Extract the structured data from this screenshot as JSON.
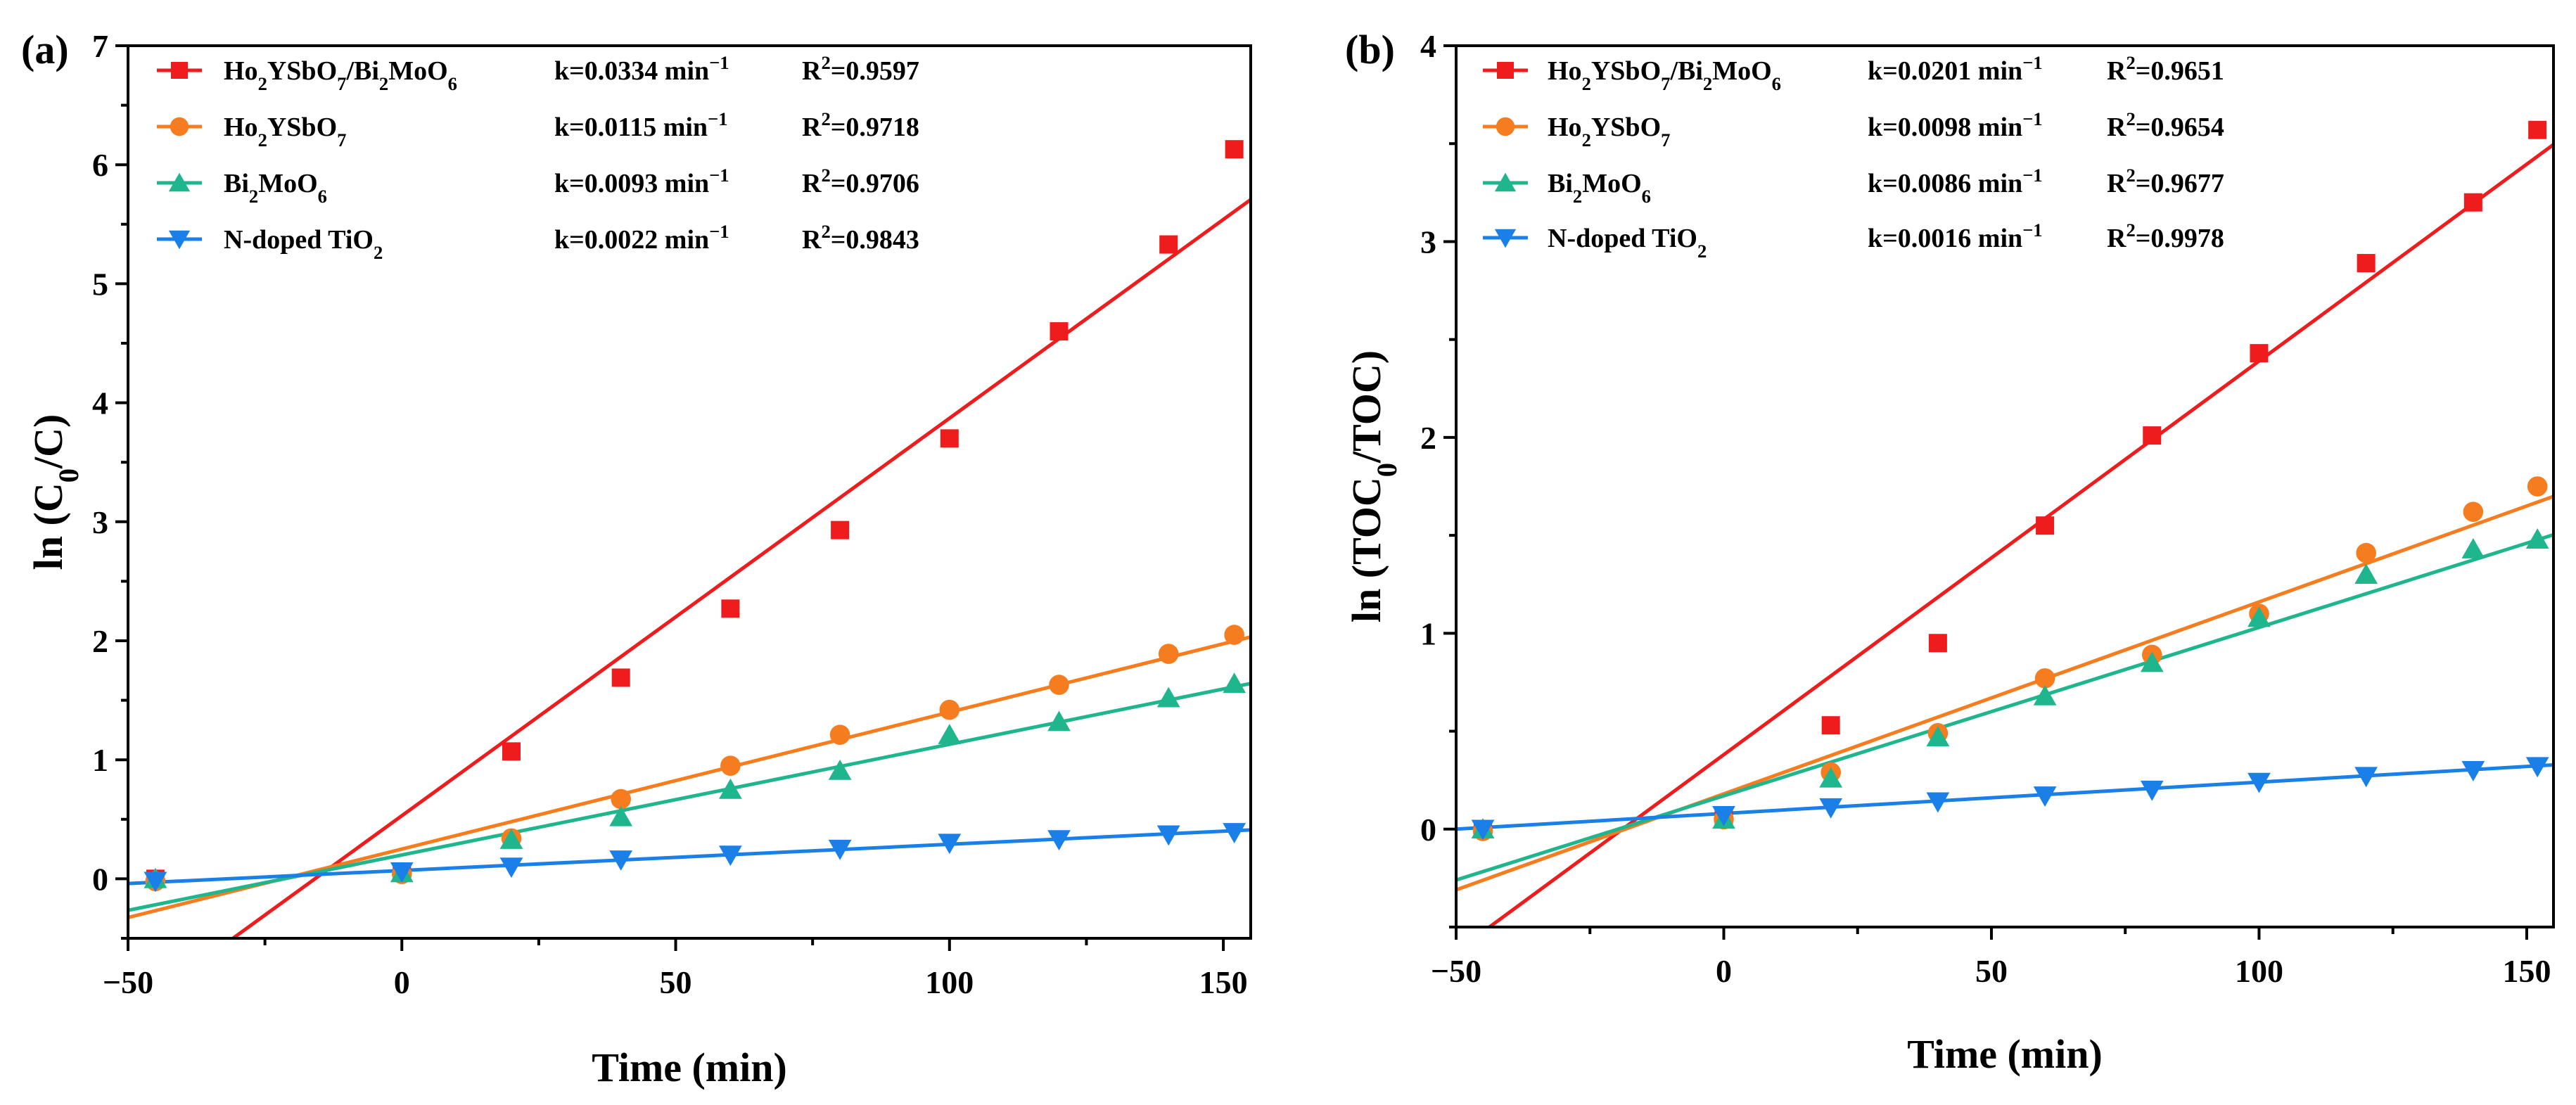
{
  "figure": {
    "panels": [
      "(a)",
      "(b)"
    ]
  },
  "chart_data": [
    {
      "type": "scatter",
      "panel_label": "(a)",
      "xlabel": "Time (min)",
      "ylabel": "ln (C0/C)",
      "ylabel_parts": {
        "pre": "ln (C",
        "sub": "0",
        "post": "/C)"
      },
      "xlim": [
        -50,
        155
      ],
      "ylim": [
        -0.5,
        7
      ],
      "xticks": [
        -50,
        0,
        50,
        100,
        150
      ],
      "yticks": [
        0,
        1,
        2,
        3,
        4,
        5,
        6,
        7
      ],
      "x": [
        -45,
        0,
        20,
        40,
        60,
        80,
        100,
        120,
        140,
        152
      ],
      "series": [
        {
          "name": "Ho2YSbO7/Bi2MoO6",
          "label_parts": [
            [
              "Ho",
              "n"
            ],
            [
              "2",
              "sub"
            ],
            [
              "YSbO",
              "n"
            ],
            [
              "7",
              "sub"
            ],
            [
              "/Bi",
              "n"
            ],
            [
              "2",
              "sub"
            ],
            [
              "MoO",
              "n"
            ],
            [
              "6",
              "sub"
            ]
          ],
          "k_label": "k=0.0334 min",
          "k_sup": "−1",
          "r2_label": "R",
          "r2_sup": "2",
          "r2_value": "=0.9597",
          "marker": "square",
          "color": "#ee1c1c",
          "values": [
            0.0,
            0.05,
            1.07,
            1.69,
            2.27,
            2.93,
            3.7,
            4.6,
            5.33,
            6.13
          ],
          "fit": {
            "slope": 0.0334,
            "intercept": 0.53
          }
        },
        {
          "name": "Ho2YSbO7",
          "label_parts": [
            [
              "Ho",
              "n"
            ],
            [
              "2",
              "sub"
            ],
            [
              "YSbO",
              "n"
            ],
            [
              "7",
              "sub"
            ]
          ],
          "k_label": "k=0.0115 min",
          "k_sup": "−1",
          "r2_label": "R",
          "r2_sup": "2",
          "r2_value": "=0.9718",
          "marker": "circle",
          "color": "#f57d1f",
          "values": [
            -0.02,
            0.04,
            0.34,
            0.67,
            0.95,
            1.21,
            1.42,
            1.63,
            1.89,
            2.05
          ],
          "fit": {
            "slope": 0.0115,
            "intercept": 0.25
          }
        },
        {
          "name": "Bi2MoO6",
          "label_parts": [
            [
              "Bi",
              "n"
            ],
            [
              "2",
              "sub"
            ],
            [
              "MoO",
              "n"
            ],
            [
              "6",
              "sub"
            ]
          ],
          "k_label": "k=0.0093 min",
          "k_sup": "−1",
          "r2_label": "R",
          "r2_sup": "2",
          "r2_value": "=0.9706",
          "marker": "triangle-up",
          "color": "#1fb58d",
          "values": [
            0.0,
            0.05,
            0.33,
            0.52,
            0.75,
            0.91,
            1.21,
            1.32,
            1.52,
            1.64
          ],
          "fit": {
            "slope": 0.0093,
            "intercept": 0.2
          }
        },
        {
          "name": "N-doped TiO2",
          "label_parts": [
            [
              "N-doped TiO",
              "n"
            ],
            [
              "2",
              "sub"
            ]
          ],
          "k_label": "k=0.0022 min",
          "k_sup": "−1",
          "r2_label": "R",
          "r2_sup": "2",
          "r2_value": "=0.9843",
          "marker": "triangle-down",
          "color": "#1a80e8",
          "values": [
            -0.02,
            0.06,
            0.1,
            0.16,
            0.2,
            0.25,
            0.3,
            0.33,
            0.37,
            0.39
          ],
          "fit": {
            "slope": 0.0022,
            "intercept": 0.07
          }
        }
      ]
    },
    {
      "type": "scatter",
      "panel_label": "(b)",
      "xlabel": "Time (min)",
      "ylabel": "ln (TOC0/TOC)",
      "ylabel_parts": {
        "pre": "ln (TOC",
        "sub": "0",
        "post": "/TOC)"
      },
      "xlim": [
        -50,
        155
      ],
      "ylim": [
        -0.5,
        4
      ],
      "xticks": [
        -50,
        0,
        50,
        100,
        150
      ],
      "yticks": [
        0,
        1,
        2,
        3,
        4
      ],
      "x": [
        -45,
        0,
        20,
        40,
        60,
        80,
        100,
        120,
        140,
        152
      ],
      "series": [
        {
          "name": "Ho2YSbO7/Bi2MoO6",
          "label_parts": [
            [
              "Ho",
              "n"
            ],
            [
              "2",
              "sub"
            ],
            [
              "YSbO",
              "n"
            ],
            [
              "7",
              "sub"
            ],
            [
              "/Bi",
              "n"
            ],
            [
              "2",
              "sub"
            ],
            [
              "MoO",
              "n"
            ],
            [
              "6",
              "sub"
            ]
          ],
          "k_label": "k=0.0201 min",
          "k_sup": "−1",
          "r2_label": "R",
          "r2_sup": "2",
          "r2_value": "=0.9651",
          "marker": "square",
          "color": "#ee1c1c",
          "values": [
            0.0,
            0.05,
            0.53,
            0.95,
            1.55,
            2.01,
            2.43,
            2.89,
            3.2,
            3.57
          ],
          "fit": {
            "slope": 0.0201,
            "intercept": 0.38
          }
        },
        {
          "name": "Ho2YSbO7",
          "label_parts": [
            [
              "Ho",
              "n"
            ],
            [
              "2",
              "sub"
            ],
            [
              "YSbO",
              "n"
            ],
            [
              "7",
              "sub"
            ]
          ],
          "k_label": "k=0.0098 min",
          "k_sup": "−1",
          "r2_label": "R",
          "r2_sup": "2",
          "r2_value": "=0.9654",
          "marker": "circle",
          "color": "#f57d1f",
          "values": [
            -0.01,
            0.05,
            0.29,
            0.49,
            0.77,
            0.89,
            1.1,
            1.41,
            1.62,
            1.75
          ],
          "fit": {
            "slope": 0.0098,
            "intercept": 0.18
          }
        },
        {
          "name": "Bi2MoO6",
          "label_parts": [
            [
              "Bi",
              "n"
            ],
            [
              "2",
              "sub"
            ],
            [
              "MoO",
              "n"
            ],
            [
              "6",
              "sub"
            ]
          ],
          "k_label": "k=0.0086 min",
          "k_sup": "−1",
          "r2_label": "R",
          "r2_sup": "2",
          "r2_value": "=0.9677",
          "marker": "triangle-up",
          "color": "#1fb58d",
          "values": [
            0.0,
            0.05,
            0.26,
            0.47,
            0.68,
            0.85,
            1.08,
            1.3,
            1.43,
            1.48
          ],
          "fit": {
            "slope": 0.0086,
            "intercept": 0.17
          }
        },
        {
          "name": "N-doped TiO2",
          "label_parts": [
            [
              "N-doped TiO",
              "n"
            ],
            [
              "2",
              "sub"
            ]
          ],
          "k_label": "k=0.0016 min",
          "k_sup": "−1",
          "r2_label": "R",
          "r2_sup": "2",
          "r2_value": "=0.9978",
          "marker": "triangle-down",
          "color": "#1a80e8",
          "values": [
            0.0,
            0.07,
            0.11,
            0.14,
            0.17,
            0.2,
            0.24,
            0.27,
            0.3,
            0.32
          ],
          "fit": {
            "slope": 0.0016,
            "intercept": 0.08
          }
        }
      ]
    }
  ]
}
